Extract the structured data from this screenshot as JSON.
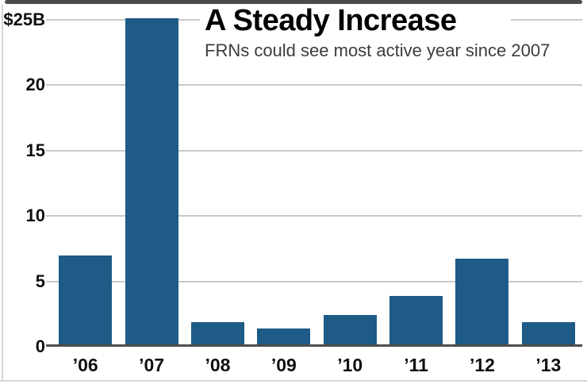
{
  "title": "A Steady Increase",
  "subtitle": "FRNs could see most active year since 2007",
  "frame": {
    "background": "#ffffff",
    "top_border_color": "#4b4b4b",
    "edge_line_color": "#d6d6d6"
  },
  "chart_data": {
    "type": "bar",
    "title": "A Steady Increase",
    "subtitle": "FRNs could see most active year since 2007",
    "categories": [
      "’06",
      "’07",
      "’08",
      "’09",
      "’10",
      "’11",
      "’12",
      "’13"
    ],
    "values": [
      7.0,
      25.2,
      1.9,
      1.4,
      2.4,
      3.9,
      6.7,
      1.9
    ],
    "unit": "billions of dollars",
    "xlabel": "",
    "ylabel": "",
    "ylim": [
      0,
      25
    ],
    "ytick_values": [
      0,
      5,
      10,
      15,
      20,
      25
    ],
    "ytick_labels": [
      "0",
      "5",
      "10",
      "15",
      "20",
      "$25B"
    ],
    "grid": true,
    "legend": false,
    "bar_color": "#1e5b87",
    "gridline_color": "#c9c9c9",
    "axis_color": "#4d4d4d",
    "label_color": "#101010"
  }
}
